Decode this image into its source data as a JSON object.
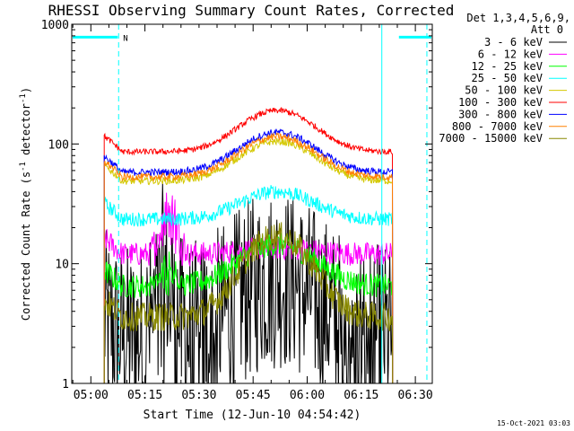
{
  "chart_data": {
    "type": "line",
    "title": "RHESSI Observing Summary Count Rates, Corrected",
    "xlabel": "Start Time (12-Jun-10 04:54:42)",
    "ylabel_main": "Corrected Count Rate (s",
    "ylabel_sup1": "-1",
    "ylabel_mid": " detector",
    "ylabel_sup2": "-1",
    "ylabel_end": ")",
    "yscale": "log",
    "xlim_min": [
      0,
      100
    ],
    "ylim": [
      1,
      1000
    ],
    "y_tick_labels": [
      "1",
      "10",
      "100",
      "1000"
    ],
    "y_ticks": [
      1,
      10,
      100,
      1000
    ],
    "x_tick_labels": [
      "05:00",
      "05:15",
      "05:30",
      "05:45",
      "06:00",
      "06:15",
      "06:30"
    ],
    "x_ticks_min": [
      5.3,
      20.3,
      35.3,
      50.3,
      65.3,
      80.3,
      95.3
    ],
    "legend": {
      "header1": "Det 1,3,4,5,6,9,",
      "header2": "Att 0",
      "placement": "right"
    },
    "attenuator_marker": "N",
    "attenuator_bars": [
      [
        0,
        13
      ],
      [
        90.5,
        100
      ]
    ],
    "attenuator_level": 780,
    "vertical_lines": [
      {
        "x": 0,
        "style": "solid"
      },
      {
        "x": 13,
        "style": "dashed"
      },
      {
        "x": 86,
        "style": "solid"
      },
      {
        "x": 98.5,
        "style": "dashed"
      }
    ],
    "data_start_min": 9,
    "data_end_min": 89,
    "series": [
      {
        "name": "3 - 6 keV",
        "color": "#000000",
        "base": 2.5,
        "bump": 7.5,
        "noise": 0.35
      },
      {
        "name": "6 - 12 keV",
        "color": "#ff00ff",
        "base": 12,
        "bump": 13.5,
        "noise": 0.1
      },
      {
        "name": "12 - 25 keV",
        "color": "#00ff00",
        "base": 6.5,
        "bump": 14.5,
        "noise": 0.1
      },
      {
        "name": "25 - 50 keV",
        "color": "#00ffff",
        "base": 23.5,
        "bump": 40,
        "noise": 0.06
      },
      {
        "name": "50 - 100 keV",
        "color": "#d4c800",
        "base": 49,
        "bump": 105,
        "noise": 0.03
      },
      {
        "name": "100 - 300 keV",
        "color": "#ff0000",
        "base": 86,
        "bump": 190,
        "noise": 0.025
      },
      {
        "name": "300 - 800 keV",
        "color": "#0000ff",
        "base": 58,
        "bump": 125,
        "noise": 0.03
      },
      {
        "name": "800 - 7000 keV",
        "color": "#ff8000",
        "base": 53,
        "bump": 115,
        "noise": 0.03
      },
      {
        "name": "7000 - 15000 keV",
        "color": "#888800",
        "base": 3.6,
        "bump": 17,
        "noise": 0.12
      }
    ],
    "timestamp": "15-Oct-2021 03:03"
  }
}
